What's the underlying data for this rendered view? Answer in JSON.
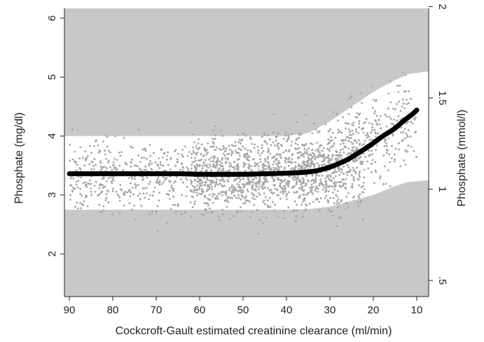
{
  "chart_data": {
    "type": "scatter",
    "title": "",
    "xlabel": "Cockcroft-Gault estimated creatinine clearance (ml/min)",
    "ylabel": "Phosphate (mg/dl)",
    "y2label": "Phosphate (mmol/l)",
    "x_reversed": true,
    "xlim": [
      92,
      8
    ],
    "ylim": [
      1.4,
      6.1
    ],
    "x_ticks": [
      90,
      80,
      70,
      60,
      50,
      40,
      30,
      20,
      10
    ],
    "x_tick_labels": [
      "90",
      "80",
      "70",
      "60",
      "50",
      "40",
      "30",
      "20",
      "10"
    ],
    "y_ticks": [
      2,
      3,
      4,
      5,
      6
    ],
    "y_tick_labels": [
      "2",
      "3",
      "4",
      "5",
      "6"
    ],
    "y2_ticks_mgdl": [
      1.549,
      3.098,
      4.647,
      6.196
    ],
    "y2_tick_labels": [
      ".5",
      "1",
      "1.5",
      "2"
    ],
    "background_color": "#c8c8c8",
    "scatter_color": "#a6a6a6",
    "band_color": "#ffffff",
    "fit_color": "#000000",
    "reference_band": {
      "x": [
        90,
        80,
        70,
        60,
        50,
        40,
        35,
        30,
        25,
        20,
        15,
        12,
        10
      ],
      "lower": [
        2.75,
        2.75,
        2.75,
        2.75,
        2.75,
        2.75,
        2.76,
        2.8,
        2.9,
        3.0,
        3.15,
        3.22,
        3.25
      ],
      "upper": [
        4.0,
        4.0,
        4.0,
        4.0,
        4.0,
        4.0,
        4.05,
        4.25,
        4.5,
        4.75,
        4.95,
        5.05,
        5.1
      ]
    },
    "series": [
      {
        "values_x": [
          90,
          85,
          80,
          75,
          70,
          65,
          60,
          55,
          50,
          45,
          40,
          37,
          35,
          33,
          30,
          27,
          25,
          22,
          20,
          18,
          15,
          13,
          11,
          10
        ],
        "values_y": [
          3.36,
          3.36,
          3.36,
          3.36,
          3.36,
          3.36,
          3.35,
          3.35,
          3.35,
          3.36,
          3.37,
          3.38,
          3.39,
          3.41,
          3.47,
          3.56,
          3.64,
          3.78,
          3.88,
          3.99,
          4.13,
          4.26,
          4.37,
          4.44
        ]
      }
    ]
  }
}
